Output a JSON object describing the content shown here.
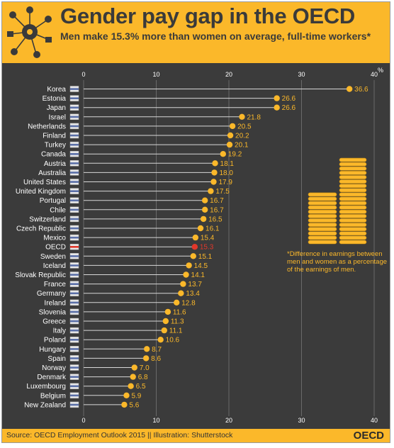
{
  "title": "Gender pay gap in the OECD",
  "subtitle": "Men make 15.3% more than women on average, full-time workers*",
  "source": "Source: OECD Employment Outlook 2015 || Illustration: Shutterstock",
  "brand": "OECD",
  "note": "*Difference in earnings between men and women as a percentage of the earnings of men.",
  "colors": {
    "accent": "#fbb82a",
    "highlight": "#e2372a",
    "background": "#3b3b3b"
  },
  "chart_data": {
    "type": "bar",
    "orientation": "horizontal",
    "unit_label": "%",
    "xlim": [
      0,
      40
    ],
    "ticks": [
      0,
      10,
      20,
      30,
      40
    ],
    "grid": true,
    "highlight": "OECD",
    "categories": [
      "Korea",
      "Estonia",
      "Japan",
      "Israel",
      "Netherlands",
      "Finland",
      "Turkey",
      "Canada",
      "Austria",
      "Australia",
      "United States",
      "United Kingdom",
      "Portugal",
      "Chile",
      "Switzerland",
      "Czech Republic",
      "Mexico",
      "OECD",
      "Sweden",
      "Iceland",
      "Slovak Republic",
      "France",
      "Germany",
      "Ireland",
      "Slovenia",
      "Greece",
      "Italy",
      "Poland",
      "Hungary",
      "Spain",
      "Norway",
      "Denmark",
      "Luxembourg",
      "Belgium",
      "New Zealand"
    ],
    "values": [
      36.6,
      26.6,
      26.6,
      21.8,
      20.5,
      20.2,
      20.1,
      19.2,
      18.1,
      18.0,
      17.9,
      17.5,
      16.7,
      16.7,
      16.5,
      16.1,
      15.4,
      15.3,
      15.1,
      14.5,
      14.1,
      13.7,
      13.4,
      12.8,
      11.6,
      11.3,
      11.1,
      10.6,
      8.7,
      8.6,
      7.0,
      6.8,
      6.5,
      5.9,
      5.6
    ],
    "value_labels": [
      "36.6",
      "26.6",
      "26.6",
      "21.8",
      "20.5",
      "20.2",
      "20.1",
      "19.2",
      "18.1",
      "18.0",
      "17.9",
      "17.5",
      "16.7",
      "16.7",
      "16.5",
      "16.1",
      "15.4",
      "15.3",
      "15.1",
      "14.5",
      "14.1",
      "13.7",
      "13.4",
      "12.8",
      "11.6",
      "11.3",
      "11.1",
      "10.6",
      "8.7",
      "8.6",
      "7.0",
      "6.8",
      "6.5",
      "5.9",
      "5.6"
    ]
  }
}
